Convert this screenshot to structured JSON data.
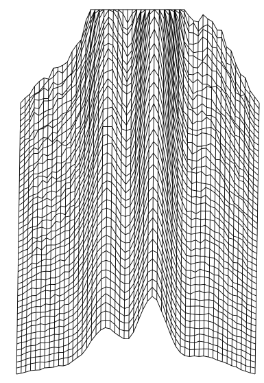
{
  "figure": {
    "description_visible_text": "",
    "style": "wireframe-surface",
    "line_color": "#000000",
    "background_color": "#ffffff"
  },
  "surface": {
    "grid_rows": 46,
    "grid_cols": 52,
    "features": [
      {
        "kind": "tall-peak",
        "relative_height": 1.0
      },
      {
        "kind": "secondary-ridge",
        "relative_height": 0.62
      },
      {
        "kind": "plateau",
        "relative_height": 0.5
      }
    ]
  }
}
